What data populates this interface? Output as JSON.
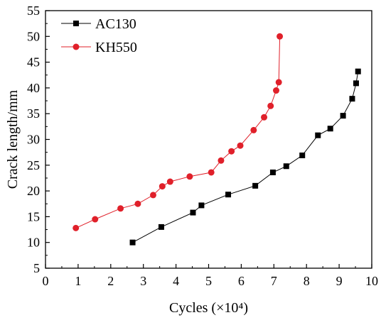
{
  "chart_data": {
    "type": "line",
    "xlabel": "Cycles (×10⁴)",
    "ylabel": "Crack length/mm",
    "xlim": [
      0,
      10
    ],
    "ylim": [
      5,
      55
    ],
    "x_ticks": [
      "0",
      "1",
      "2",
      "3",
      "4",
      "5",
      "6",
      "7",
      "8",
      "9",
      "10"
    ],
    "y_ticks": [
      "5",
      "10",
      "15",
      "20",
      "25",
      "30",
      "35",
      "40",
      "45",
      "50",
      "55"
    ],
    "grid": false,
    "legend_position": "top-left",
    "series": [
      {
        "name": "AC130",
        "color": "#000000",
        "marker": "square",
        "x": [
          2.67,
          3.55,
          4.52,
          4.78,
          5.6,
          6.43,
          6.97,
          7.38,
          7.87,
          8.35,
          8.73,
          9.12,
          9.4,
          9.52,
          9.58
        ],
        "y": [
          10.0,
          13.0,
          15.8,
          17.2,
          19.3,
          21.0,
          23.6,
          24.8,
          26.9,
          30.8,
          32.1,
          34.6,
          37.9,
          40.9,
          43.2
        ]
      },
      {
        "name": "KH550",
        "color": "#e0202a",
        "marker": "circle",
        "x": [
          0.93,
          1.52,
          2.3,
          2.83,
          3.3,
          3.58,
          3.82,
          4.42,
          5.08,
          5.38,
          5.7,
          5.97,
          6.38,
          6.7,
          6.9,
          7.07,
          7.15,
          7.18
        ],
        "y": [
          12.8,
          14.5,
          16.6,
          17.5,
          19.2,
          20.9,
          21.8,
          22.8,
          23.6,
          25.9,
          27.7,
          28.8,
          31.8,
          34.3,
          36.5,
          39.5,
          41.1,
          50.0
        ]
      }
    ]
  }
}
